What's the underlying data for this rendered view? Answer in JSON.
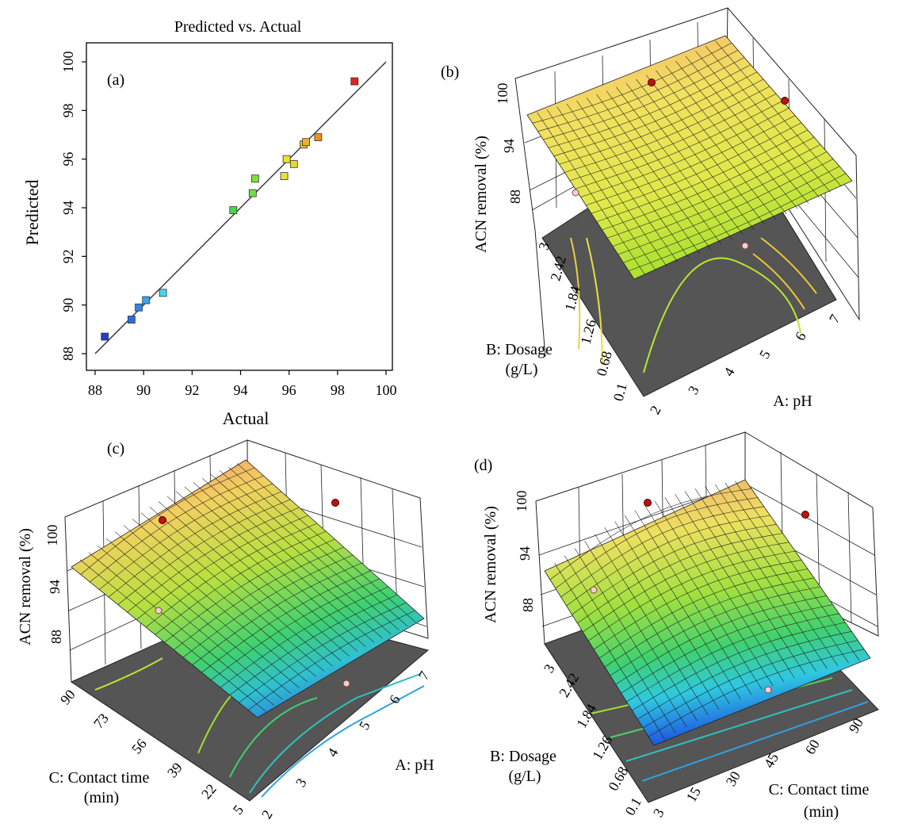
{
  "chart_data": [
    {
      "panel": "(a)",
      "type": "scatter",
      "title": "Predicted vs. Actual",
      "xlabel": "Actual",
      "ylabel": "Predicted",
      "xlim": [
        88,
        100
      ],
      "ylim": [
        88,
        100
      ],
      "xticks": [
        "88",
        "90",
        "92",
        "94",
        "96",
        "98",
        "100"
      ],
      "yticks": [
        "88",
        "90",
        "92",
        "94",
        "96",
        "98",
        "100"
      ],
      "points": [
        {
          "x": 88.4,
          "y": 88.7,
          "color": "#1f3fd0"
        },
        {
          "x": 89.5,
          "y": 89.4,
          "color": "#2a6fe0"
        },
        {
          "x": 89.8,
          "y": 89.9,
          "color": "#2f86e8"
        },
        {
          "x": 90.1,
          "y": 90.2,
          "color": "#3aa5f0"
        },
        {
          "x": 90.8,
          "y": 90.5,
          "color": "#40d8f0"
        },
        {
          "x": 93.7,
          "y": 93.9,
          "color": "#48d848"
        },
        {
          "x": 94.5,
          "y": 94.6,
          "color": "#6ee040"
        },
        {
          "x": 94.6,
          "y": 95.2,
          "color": "#7fe23a"
        },
        {
          "x": 95.8,
          "y": 95.3,
          "color": "#e6e630"
        },
        {
          "x": 95.9,
          "y": 96.0,
          "color": "#ece22c"
        },
        {
          "x": 96.2,
          "y": 95.8,
          "color": "#e8d830"
        },
        {
          "x": 96.6,
          "y": 96.6,
          "color": "#f0c030"
        },
        {
          "x": 96.7,
          "y": 96.7,
          "color": "#f0b030"
        },
        {
          "x": 97.2,
          "y": 96.9,
          "color": "#f09020"
        },
        {
          "x": 98.7,
          "y": 99.2,
          "color": "#e82020"
        }
      ],
      "fit_line": {
        "x": [
          88,
          100
        ],
        "y": [
          88,
          100
        ]
      }
    },
    {
      "panel": "(b)",
      "type": "surface",
      "zlabel": "ACN removal  (%)",
      "xlabel": "A: pH",
      "ylabel": "B: Dosage (g/L)",
      "zticks": [
        "88",
        "94",
        "100"
      ],
      "xticks": [
        "2",
        "3",
        "4",
        "5",
        "6",
        "7"
      ],
      "yticks": [
        "0.1",
        "0.68",
        "1.26",
        "1.84",
        "2.42",
        "3"
      ],
      "zlim": [
        85,
        101
      ]
    },
    {
      "panel": "(c)",
      "type": "surface",
      "zlabel": "ACN removal  (%)",
      "xlabel": "A: pH",
      "ylabel": "C: Contact time (min)",
      "zticks": [
        "88",
        "94",
        "100"
      ],
      "xticks": [
        "2",
        "3",
        "4",
        "5",
        "6",
        "7"
      ],
      "yticks": [
        "5",
        "22",
        "39",
        "56",
        "73",
        "90"
      ],
      "zlim": [
        85,
        101
      ]
    },
    {
      "panel": "(d)",
      "type": "surface",
      "zlabel": "ACN removal  (%)",
      "xlabel": "C: Contact time (min)",
      "ylabel": "B: Dosage (g/L)",
      "zticks": [
        "88",
        "94",
        "100"
      ],
      "xticks": [
        "3",
        "15",
        "30",
        "45",
        "60",
        "90"
      ],
      "yticks": [
        "0.1",
        "0.68",
        "1.26",
        "1.84",
        "2.42",
        "3"
      ],
      "zlim": [
        85,
        101
      ]
    }
  ]
}
